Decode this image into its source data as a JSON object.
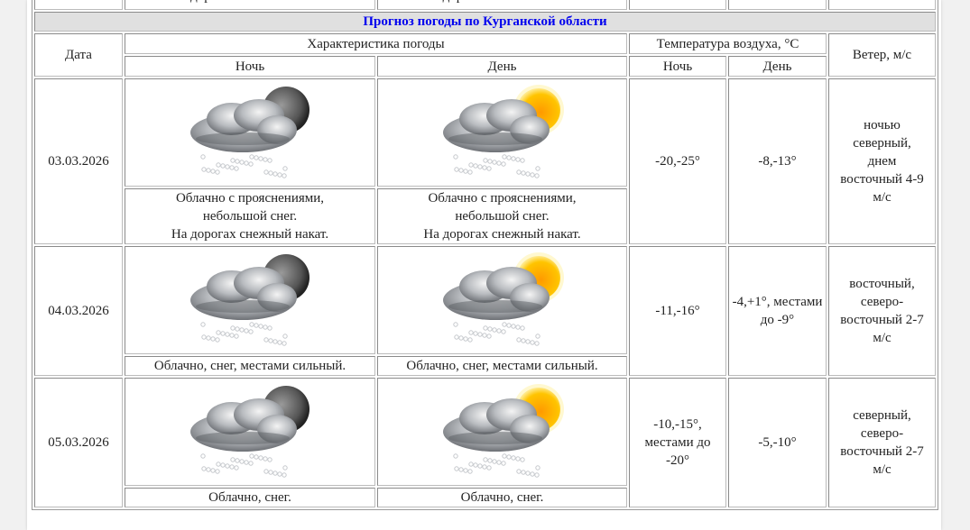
{
  "previous_row": {
    "night_text": "На дорогах снежный накат.",
    "day_text": "На дорогах снежный накат."
  },
  "title": "Прогноз погоды по Курганской области",
  "headers": {
    "date": "Дата",
    "weather": "Характеристика погоды",
    "temperature": "Температура воздуха, °С",
    "wind": "Ветер, м/с",
    "night": "Ночь",
    "day": "День"
  },
  "colors": {
    "title": "#0000ee",
    "header_bg": "#e0e0e0"
  },
  "rows": [
    {
      "date": "03.03.2026",
      "night_icon": "cloud-snow-moon-icon",
      "day_icon": "cloud-snow-sun-icon",
      "night_text": [
        "Облачно с прояснениями,",
        "небольшой снег.",
        "На дорогах снежный накат."
      ],
      "day_text": [
        "Облачно с прояснениями,",
        "небольшой снег.",
        "На дорогах снежный накат."
      ],
      "temp_night": "-20,-25°",
      "temp_day": "-8,-13°",
      "wind": [
        "ночью",
        "северный,",
        "днем",
        "восточный 4-9",
        "м/с"
      ]
    },
    {
      "date": "04.03.2026",
      "night_icon": "cloud-snow-moon-icon",
      "day_icon": "cloud-snow-sun-icon",
      "night_text": [
        "Облачно, снег, местами сильный."
      ],
      "day_text": [
        "Облачно, снег, местами сильный."
      ],
      "temp_night": "-11,-16°",
      "temp_day": "-4,+1°, местами до -9°",
      "wind": [
        "восточный,",
        "северо-",
        "восточный 2-7",
        "м/с"
      ]
    },
    {
      "date": "05.03.2026",
      "night_icon": "cloud-snow-moon-icon",
      "day_icon": "cloud-snow-sun-icon",
      "night_text": [
        "Облачно, снег."
      ],
      "day_text": [
        "Облачно, снег."
      ],
      "temp_night": "-10,-15°, местами до -20°",
      "temp_day": "-5,-10°",
      "wind": [
        "северный,",
        "северо-",
        "восточный 2-7",
        "м/с"
      ]
    }
  ]
}
